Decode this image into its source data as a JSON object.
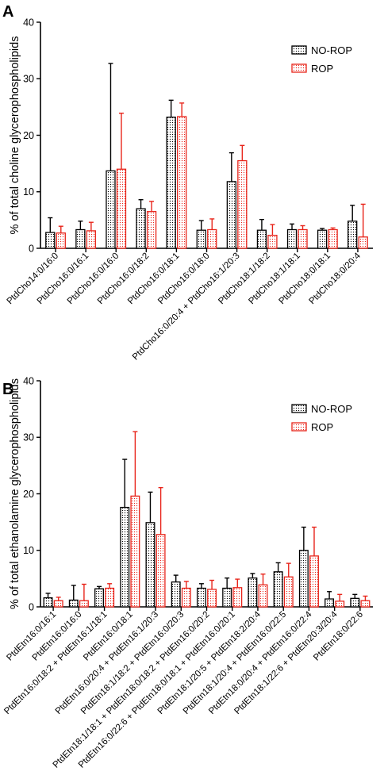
{
  "colors": {
    "series_1": "#000000",
    "series_2": "#e8251b",
    "background": "#ffffff"
  },
  "chart_data": [
    {
      "type": "bar",
      "panel": "A",
      "ylabel": "% of total choline glycerophospholipids",
      "xlabel": "",
      "ylim": [
        0,
        40
      ],
      "yticks": [
        0,
        10,
        20,
        30,
        40
      ],
      "legend_position": "top-right",
      "grid": false,
      "error_bars": true,
      "categories": [
        "PtdCho14:0/16:0",
        "PtdCho16:0/16:1",
        "PtdCho16:0/16:0",
        "PtdCho16:0/18:2",
        "PtdCho16:0/18:1",
        "PtdCho16:0/18:0",
        "PtdCho16:0/20:4 + PtdCho16:1/20:3",
        "PtdCho18:1/18:2",
        "PtdCho18:1/18:1",
        "PtdCho18:0/18:1",
        "PtdCho18:0/20:4"
      ],
      "series": [
        {
          "name": "NO-ROP",
          "values": [
            2.8,
            3.3,
            13.7,
            7.0,
            23.2,
            3.2,
            11.8,
            3.2,
            3.3,
            3.2,
            4.8
          ],
          "errors": [
            2.6,
            1.5,
            19.0,
            1.6,
            3.0,
            1.7,
            5.1,
            1.9,
            1.0,
            0.3,
            2.8
          ]
        },
        {
          "name": "ROP",
          "values": [
            2.7,
            3.1,
            14.0,
            6.5,
            23.3,
            3.3,
            15.5,
            2.3,
            3.3,
            3.3,
            2.0
          ],
          "errors": [
            1.2,
            1.5,
            9.9,
            1.8,
            2.4,
            1.9,
            2.7,
            1.9,
            0.7,
            0.3,
            5.8
          ]
        }
      ]
    },
    {
      "type": "bar",
      "panel": "B",
      "ylabel": "% of total ethanolamine glycerophospholipids",
      "xlabel": "",
      "ylim": [
        0,
        40
      ],
      "yticks": [
        0,
        10,
        20,
        30,
        40
      ],
      "legend_position": "top-right",
      "grid": false,
      "error_bars": true,
      "categories": [
        "PtdEtn16:0/16:1",
        "PtdEtn16:0/16:0",
        "PtdEtn16:0/18:2 + PtdEtn16:1/18:1",
        "PtdEtn16:0/18:1",
        "PtdEtn16:0/20:4 + PtdEtn16:1/20:3",
        "PtdEtn18:1/18:2 + PtdEtn16:0/20:3",
        "PtdEtn18:1/18:1 + PtdEtn18:0/18:2 + PtdEtn16:0/20:2",
        "PtdEtn16:0/22:6 + PtdEtn18:0/18:1 + PtdEtn16:0/20:1",
        "PtdEtn18:1/20:5 + PtdEtn18:2/20:4",
        "PtdEtn18:1/20:4 + PtdEtn16:0/22:5",
        "PtdEtn18:0/20:4 + PtdEtn16:0/22:4",
        "PtdEtn18:1/22:6 + PtdEtn20:3/20:4",
        "PtdEtn18:0/22:6"
      ],
      "series": [
        {
          "name": "NO-ROP",
          "values": [
            1.6,
            1.2,
            3.2,
            17.6,
            14.9,
            4.4,
            3.3,
            3.3,
            5.1,
            6.2,
            10.0,
            1.4,
            1.5
          ],
          "errors": [
            0.8,
            2.6,
            0.4,
            8.5,
            5.4,
            1.2,
            0.8,
            1.8,
            0.8,
            1.6,
            4.1,
            1.3,
            0.7
          ]
        },
        {
          "name": "ROP",
          "values": [
            1.1,
            1.1,
            3.3,
            19.6,
            12.8,
            3.3,
            3.1,
            3.4,
            3.9,
            5.3,
            9.0,
            1.0,
            1.1
          ],
          "errors": [
            0.6,
            2.9,
            0.8,
            11.4,
            8.3,
            1.2,
            1.6,
            1.5,
            1.9,
            2.4,
            5.1,
            1.2,
            0.8
          ]
        }
      ]
    }
  ]
}
